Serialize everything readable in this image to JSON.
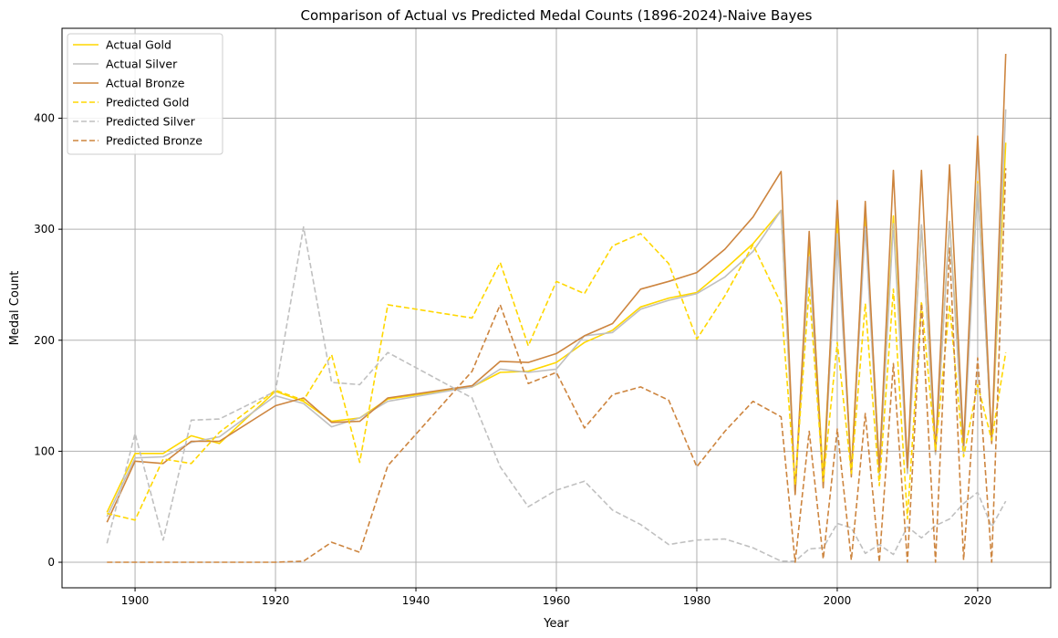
{
  "chart_data": {
    "type": "line",
    "title": "Comparison of Actual vs Predicted Medal Counts (1896-2024)-Naive Bayes",
    "xlabel": "Year",
    "ylabel": "Medal Count",
    "xlim": [
      1889.6,
      2030.4
    ],
    "ylim": [
      -23,
      481
    ],
    "xticks": [
      1900,
      1920,
      1940,
      1960,
      1980,
      2000,
      2020
    ],
    "yticks": [
      0,
      100,
      200,
      300,
      400
    ],
    "grid": true,
    "legend_position": "top-left",
    "x": [
      1896,
      1900,
      1904,
      1908,
      1912,
      1920,
      1924,
      1928,
      1932,
      1936,
      1948,
      1952,
      1956,
      1960,
      1964,
      1968,
      1972,
      1976,
      1980,
      1984,
      1988,
      1992,
      1994,
      1996,
      1998,
      2000,
      2002,
      2004,
      2006,
      2008,
      2010,
      2012,
      2014,
      2016,
      2018,
      2020,
      2022,
      2024
    ],
    "series": [
      {
        "name": "Actual Gold",
        "color": "#FFD700",
        "dash": "solid",
        "values": [
          45,
          98,
          98,
          114,
          107,
          154,
          145,
          127,
          130,
          147,
          158,
          171,
          172,
          180,
          198,
          209,
          230,
          238,
          243,
          264,
          287,
          317,
          64,
          290,
          77,
          309,
          82,
          315,
          84,
          312,
          87,
          303,
          98,
          307,
          105,
          343,
          109,
          378
        ]
      },
      {
        "name": "Actual Silver",
        "color": "#C0C0C0",
        "dash": "solid",
        "values": [
          41,
          94,
          95,
          108,
          113,
          150,
          143,
          122,
          130,
          145,
          158,
          174,
          171,
          174,
          204,
          207,
          228,
          236,
          242,
          257,
          280,
          317,
          62,
          275,
          68,
          296,
          79,
          302,
          78,
          305,
          80,
          304,
          97,
          307,
          98,
          341,
          108,
          408
        ]
      },
      {
        "name": "Actual Bronze",
        "color": "#CD853F",
        "dash": "solid",
        "values": [
          36,
          91,
          89,
          109,
          109,
          141,
          148,
          126,
          127,
          148,
          159,
          181,
          180,
          188,
          204,
          215,
          246,
          253,
          261,
          282,
          311,
          352,
          61,
          298,
          67,
          326,
          77,
          325,
          82,
          353,
          85,
          353,
          100,
          358,
          105,
          384,
          107,
          458
        ]
      },
      {
        "name": "Predicted Gold",
        "color": "#FFD700",
        "dash": "dashed",
        "values": [
          44,
          38,
          93,
          89,
          117,
          155,
          146,
          187,
          90,
          232,
          220,
          270,
          195,
          253,
          242,
          285,
          296,
          269,
          201,
          240,
          286,
          233,
          70,
          247,
          73,
          198,
          80,
          233,
          69,
          246,
          39,
          235,
          101,
          232,
          95,
          160,
          110,
          189
        ]
      },
      {
        "name": "Predicted Silver",
        "color": "#C0C0C0",
        "dash": "dashed",
        "values": [
          17,
          116,
          20,
          128,
          129,
          154,
          302,
          162,
          160,
          189,
          148,
          86,
          50,
          65,
          73,
          47,
          34,
          16,
          20,
          21,
          13,
          1,
          1,
          12,
          13,
          35,
          31,
          8,
          16,
          7,
          32,
          22,
          33,
          39,
          53,
          63,
          32,
          55
        ]
      },
      {
        "name": "Predicted Bronze",
        "color": "#CD853F",
        "dash": "dashed",
        "values": [
          0,
          0,
          0,
          0,
          0,
          0,
          1,
          18,
          9,
          87,
          172,
          232,
          161,
          171,
          121,
          151,
          158,
          146,
          86,
          118,
          145,
          131,
          0,
          118,
          3,
          120,
          2,
          134,
          0,
          179,
          0,
          233,
          0,
          283,
          2,
          184,
          0,
          355
        ]
      }
    ]
  }
}
